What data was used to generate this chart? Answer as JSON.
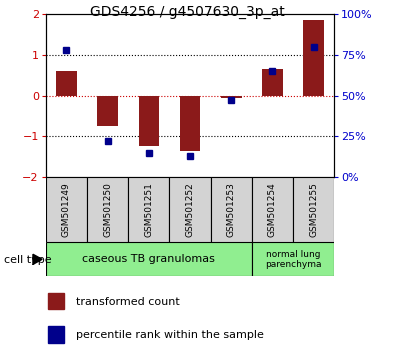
{
  "title": "GDS4256 / g4507630_3p_at",
  "samples": [
    "GSM501249",
    "GSM501250",
    "GSM501251",
    "GSM501252",
    "GSM501253",
    "GSM501254",
    "GSM501255"
  ],
  "transformed_count": [
    0.6,
    -0.75,
    -1.25,
    -1.35,
    -0.05,
    0.65,
    1.85
  ],
  "percentile_rank": [
    78,
    22,
    15,
    13,
    47,
    65,
    80
  ],
  "ylim_left": [
    -2,
    2
  ],
  "ylim_right": [
    0,
    100
  ],
  "bar_color": "#8b1a1a",
  "blue_color": "#00008b",
  "zero_line_color": "#cc0000",
  "tick_color_left": "#cc0000",
  "tick_color_right": "#0000cc",
  "group1_label": "caseous TB granulomas",
  "group1_count": 5,
  "group2_label": "normal lung\nparenchyma",
  "group2_count": 2,
  "group_color": "#90ee90",
  "sample_box_color": "#d3d3d3",
  "legend_red_label": "transformed count",
  "legend_blue_label": "percentile rank within the sample"
}
